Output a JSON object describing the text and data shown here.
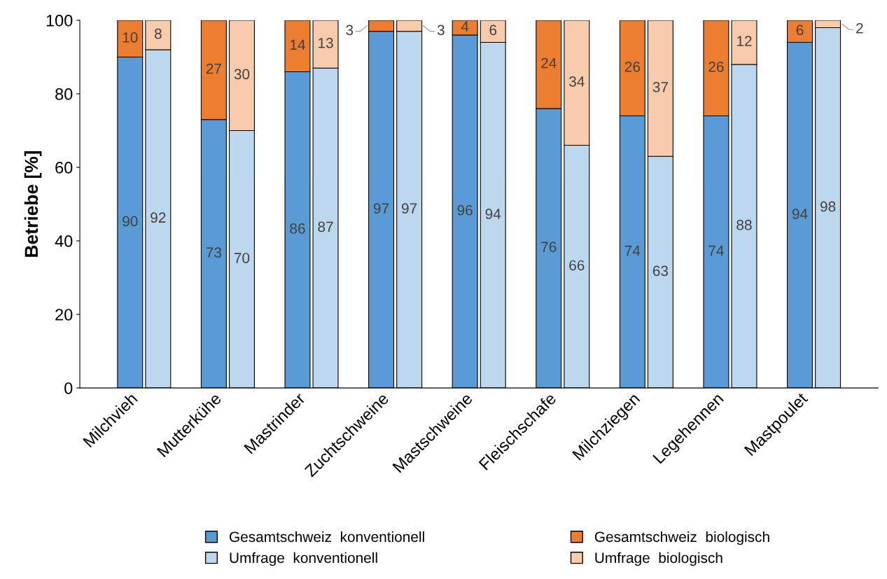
{
  "chart_data": {
    "type": "bar",
    "stacked": true,
    "ylabel": "Betriebe [%]",
    "categories": [
      "Milchvieh",
      null,
      "Mutterkühe",
      null,
      "Mastrinder",
      null,
      "Zuchtschweine",
      null,
      "Mastschweine",
      null,
      "Fleischschafe",
      null,
      "Milchziegen",
      null,
      "Legehennen",
      null,
      "Mastpoulet",
      null
    ],
    "series": [
      {
        "name": "Gesamtschweiz  konventionell",
        "color": "#5b9bd5",
        "values": [
          90,
          null,
          73,
          null,
          86,
          null,
          97,
          null,
          96,
          null,
          76,
          null,
          74,
          null,
          74,
          null,
          94,
          null
        ]
      },
      {
        "name": "Gesamtschweiz  biologisch",
        "color": "#ed7d31",
        "values": [
          10,
          null,
          27,
          null,
          14,
          null,
          3,
          null,
          4,
          null,
          24,
          null,
          26,
          null,
          26,
          null,
          6,
          null
        ]
      },
      {
        "name": "Umfrage  konventionell",
        "color": "#bdd7ee",
        "values": [
          null,
          92,
          null,
          70,
          null,
          87,
          null,
          97,
          null,
          94,
          null,
          66,
          null,
          63,
          null,
          88,
          null,
          98
        ]
      },
      {
        "name": "Umfrage  biologisch",
        "color": "#f8cbad",
        "values": [
          null,
          8,
          null,
          30,
          null,
          13,
          null,
          3,
          null,
          6,
          null,
          34,
          null,
          37,
          null,
          12,
          null,
          2
        ]
      }
    ],
    "ylim": [
      0,
      100
    ],
    "yticks": [
      0,
      20,
      40,
      60,
      80,
      100
    ],
    "grid": false,
    "legend": "bottom",
    "data_labels": true
  }
}
